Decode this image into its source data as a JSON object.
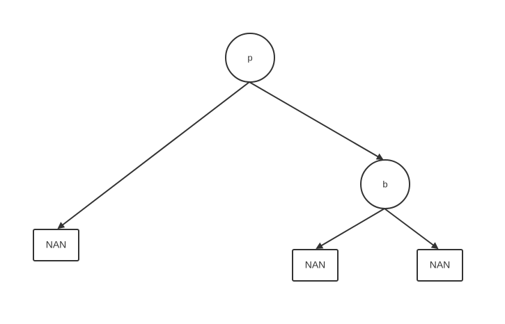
{
  "diagram": {
    "nodes": {
      "root": {
        "label": "p"
      },
      "right_internal": {
        "label": "b"
      },
      "leaf_left": {
        "label": "NAN"
      },
      "leaf_bottom_left": {
        "label": "NAN"
      },
      "leaf_bottom_right": {
        "label": "NAN"
      }
    },
    "edges": [
      {
        "from": "root",
        "to": "leaf_left"
      },
      {
        "from": "root",
        "to": "right_internal"
      },
      {
        "from": "right_internal",
        "to": "leaf_bottom_left"
      },
      {
        "from": "right_internal",
        "to": "leaf_bottom_right"
      }
    ],
    "colors": {
      "stroke": "#333333",
      "background": "#ffffff"
    }
  }
}
